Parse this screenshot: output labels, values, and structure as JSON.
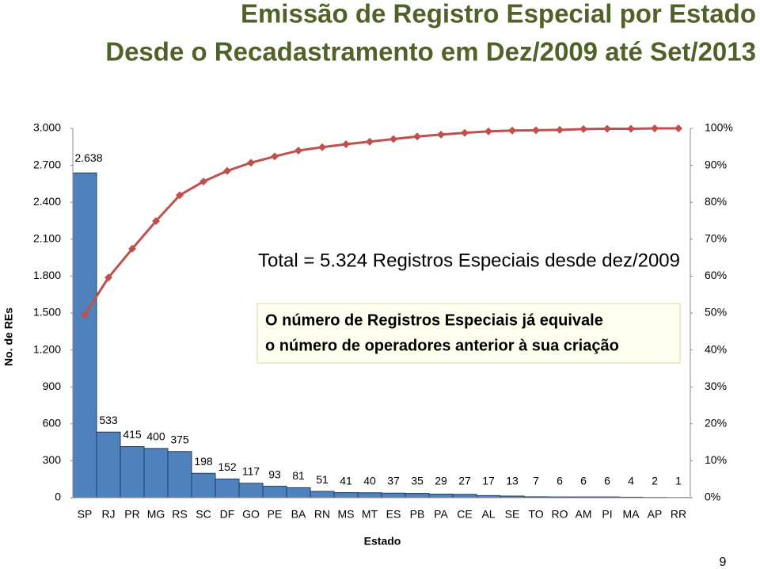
{
  "chart_data": {
    "type": "pareto",
    "title": "Emissão de Registro Especial por Estado",
    "subtitle": "Desde o Recadastramento em Dez/2009 até Set/2013",
    "y_label": "No. de REs",
    "x_label": "Estado",
    "categories": [
      "SP",
      "RJ",
      "PR",
      "MG",
      "RS",
      "SC",
      "DF",
      "GO",
      "PE",
      "BA",
      "RN",
      "MS",
      "MT",
      "ES",
      "PB",
      "PA",
      "CE",
      "AL",
      "SE",
      "TO",
      "RO",
      "AM",
      "PI",
      "MA",
      "AP",
      "RR"
    ],
    "values": [
      2638,
      533,
      415,
      400,
      375,
      198,
      152,
      117,
      93,
      81,
      51,
      41,
      40,
      37,
      35,
      29,
      27,
      17,
      13,
      7,
      6,
      6,
      6,
      4,
      2,
      1
    ],
    "value_labels": [
      "2.638",
      "533",
      "415",
      "400",
      "375",
      "198",
      "152",
      "117",
      "93",
      "81",
      "51",
      "41",
      "40",
      "37",
      "35",
      "29",
      "27",
      "17",
      "13",
      "7",
      "6",
      "6",
      "6",
      "4",
      "2",
      "1"
    ],
    "color": "#4f81bd",
    "cumulative": {
      "axis": "y2",
      "color": "#c0504d",
      "values": [
        49.5,
        59.6,
        67.4,
        74.9,
        81.9,
        85.6,
        88.5,
        90.7,
        92.4,
        94.0,
        94.9,
        95.7,
        96.4,
        97.1,
        97.8,
        98.3,
        98.8,
        99.2,
        99.4,
        99.5,
        99.6,
        99.8,
        99.9,
        99.9,
        100.0,
        100.0
      ]
    },
    "ylim": [
      0,
      3000
    ],
    "yticks": [
      0,
      300,
      600,
      900,
      {
        "value": 1200,
        "label": "1.200"
      },
      {
        "value": 1500,
        "label": "1.500"
      },
      {
        "value": 1800,
        "label": "1.800"
      },
      {
        "value": 2100,
        "label": "2.100"
      },
      {
        "value": 2400,
        "label": "2.400"
      },
      {
        "value": 2700,
        "label": "2.700"
      },
      {
        "value": 3000,
        "label": "3.000"
      }
    ],
    "y2lim": [
      0,
      100
    ],
    "y2ticks": [
      {
        "value": 0,
        "label": "0%"
      },
      {
        "value": 10,
        "label": "10%"
      },
      {
        "value": 20,
        "label": "20%"
      },
      {
        "value": 30,
        "label": "30%"
      },
      {
        "value": 40,
        "label": "40%"
      },
      {
        "value": 50,
        "label": "50%"
      },
      {
        "value": 60,
        "label": "60%"
      },
      {
        "value": 70,
        "label": "70%"
      },
      {
        "value": 80,
        "label": "80%"
      },
      {
        "value": 90,
        "label": "90%"
      },
      {
        "value": 100,
        "label": "100%"
      }
    ],
    "annotations": [
      "Total = 5.324 Registros Especiais desde dez/2009",
      "O número de Registros Especiais já equivale",
      "o número de operadores anterior à sua criação"
    ]
  },
  "page_number": "9"
}
